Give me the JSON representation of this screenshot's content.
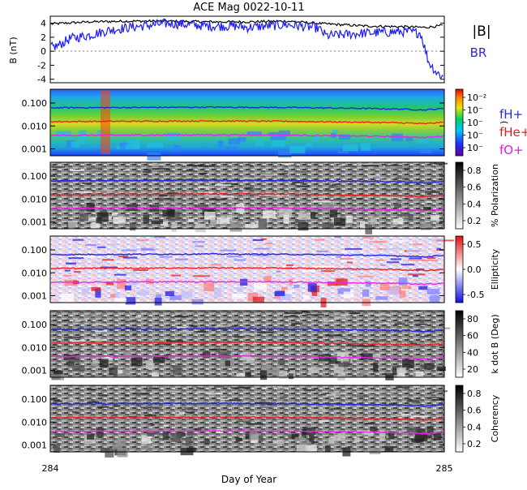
{
  "title": "ACE Mag 0022-10-11",
  "xlabel": "Day of Year",
  "x_ticks": [
    "284",
    "285"
  ],
  "colors": {
    "btotal": "#000000",
    "br": "#1a1aff",
    "fH": "#2222ee",
    "fHe": "#ee2222",
    "fO": "#ee22ee",
    "legend_h": "#2b2bd6",
    "legend_he": "#e02020",
    "legend_o": "#e020e0"
  },
  "panel1": {
    "ylabel": "B (nT)",
    "y_ticks": [
      "4",
      "2",
      "0",
      "-2",
      "-4"
    ],
    "legend_btotal": "|B|",
    "legend_br": "BR"
  },
  "freq_y_ticks": [
    "0.100",
    "0.010",
    "0.001"
  ],
  "panels": [
    {
      "id": "power",
      "colorbar_label": ")",
      "colorbar_ticks": [
        "10⁻²",
        "10⁻",
        "10⁻",
        "10⁻",
        "10⁻"
      ]
    },
    {
      "id": "polarization",
      "colorbar_label": "% Polarization",
      "colorbar_ticks": [
        "0.8",
        "0.6",
        "0.4",
        "0.2"
      ]
    },
    {
      "id": "ellipticity",
      "colorbar_label": "Ellipticity",
      "colorbar_ticks": [
        "0.5",
        "0.0",
        "-0.5"
      ]
    },
    {
      "id": "kdotb",
      "colorbar_label": "k dot B (Deg)",
      "colorbar_ticks": [
        "80",
        "60",
        "40",
        "20"
      ]
    },
    {
      "id": "coherency",
      "colorbar_label": "Coherency",
      "colorbar_ticks": [
        "0.8",
        "0.6",
        "0.4",
        "0.2"
      ]
    }
  ],
  "legend": {
    "fH": "fH+",
    "fHe": "fHe+",
    "fO": "fO+"
  },
  "chart_data": {
    "type": "line",
    "title": "ACE Mag 0022-10-11",
    "xlabel": "Day of Year",
    "xlim": [
      284,
      285
    ],
    "panel1": {
      "ylim": [
        -4.5,
        5
      ],
      "series": [
        {
          "name": "|B|",
          "x": [
            284.0,
            284.1,
            284.2,
            284.3,
            284.4,
            284.5,
            284.6,
            284.7,
            284.8,
            284.9,
            284.95,
            285.0
          ],
          "values": [
            3.9,
            4.2,
            4.3,
            4.3,
            4.2,
            4.2,
            4.3,
            3.9,
            3.6,
            3.5,
            3.4,
            3.7
          ]
        },
        {
          "name": "BR",
          "x": [
            284.0,
            284.02,
            284.05,
            284.1,
            284.15,
            284.2,
            284.3,
            284.4,
            284.47,
            284.5,
            284.6,
            284.68,
            284.7,
            284.8,
            284.9,
            284.94,
            284.96,
            284.98,
            285.0
          ],
          "values": [
            0.5,
            0.8,
            1.8,
            2.3,
            3.0,
            3.4,
            4.0,
            3.6,
            3.6,
            3.4,
            3.8,
            3.3,
            2.2,
            2.6,
            2.8,
            2.6,
            -1.5,
            -3.0,
            -3.8
          ]
        }
      ]
    },
    "frequency_panels": {
      "ylim": [
        0.0005,
        0.4
      ],
      "yscale": "log",
      "series": [
        {
          "name": "fH+",
          "x": [
            284.0,
            284.2,
            284.4,
            284.6,
            284.8,
            284.9,
            284.95,
            285.0
          ],
          "values": [
            0.062,
            0.064,
            0.066,
            0.064,
            0.058,
            0.054,
            0.05,
            0.058
          ]
        },
        {
          "name": "fHe+",
          "x": [
            284.0,
            284.2,
            284.4,
            284.6,
            284.8,
            284.9,
            284.95,
            285.0
          ],
          "values": [
            0.0155,
            0.016,
            0.0165,
            0.016,
            0.0145,
            0.0135,
            0.0125,
            0.0145
          ]
        },
        {
          "name": "fO+",
          "x": [
            284.0,
            284.2,
            284.4,
            284.6,
            284.8,
            284.9,
            284.95,
            285.0
          ],
          "values": [
            0.0039,
            0.004,
            0.0041,
            0.004,
            0.0036,
            0.0034,
            0.0031,
            0.0036
          ]
        }
      ]
    }
  }
}
